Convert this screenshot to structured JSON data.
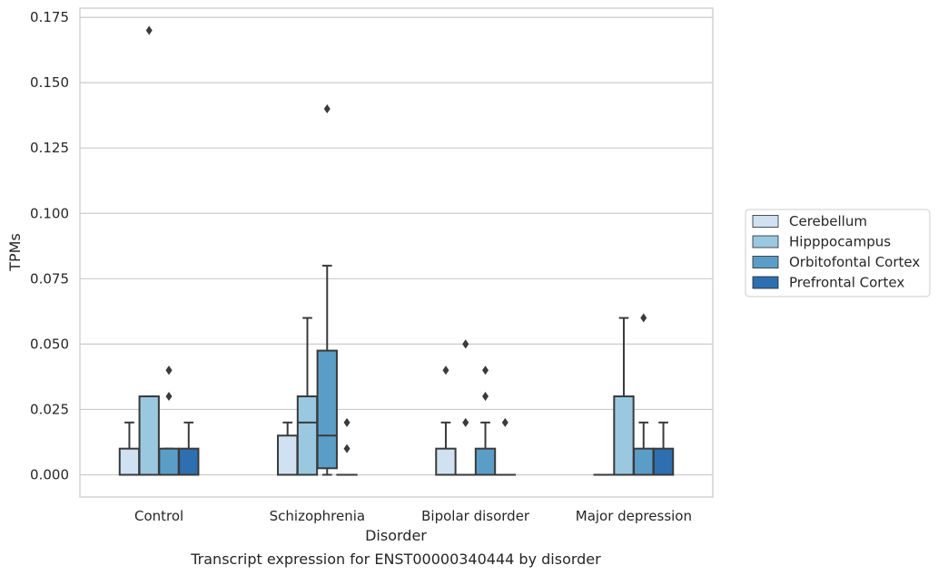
{
  "chart_data": {
    "type": "box",
    "title": "",
    "caption": "Transcript expression for ENST00000340444 by disorder",
    "xlabel": "Disorder",
    "ylabel": "TPMs",
    "ylim": [
      -0.0085,
      0.1785
    ],
    "yticks": [
      "0.000",
      "0.025",
      "0.050",
      "0.075",
      "0.100",
      "0.125",
      "0.150",
      "0.175"
    ],
    "grid": "horizontal",
    "legend_position": "right",
    "categories": [
      "Control",
      "Schizophrenia",
      "Bipolar disorder",
      "Major depression"
    ],
    "series": [
      {
        "name": "Cerebellum",
        "color": "#d0e1f2",
        "boxes": [
          {
            "q1": 0,
            "median": 0,
            "q3": 0.01,
            "whisker_low": 0,
            "whisker_high": 0.02,
            "outliers": []
          },
          {
            "q1": 0,
            "median": 0,
            "q3": 0.015,
            "whisker_low": 0,
            "whisker_high": 0.02,
            "outliers": []
          },
          {
            "q1": 0,
            "median": 0,
            "q3": 0.01,
            "whisker_low": 0,
            "whisker_high": 0.02,
            "outliers": [
              0.04
            ]
          },
          {
            "q1": 0,
            "median": 0,
            "q3": 0,
            "whisker_low": 0,
            "whisker_high": 0,
            "outliers": []
          }
        ]
      },
      {
        "name": "Hipppocampus",
        "color": "#9ac8e0",
        "boxes": [
          {
            "q1": 0,
            "median": 0,
            "q3": 0.03,
            "whisker_low": 0,
            "whisker_high": 0.03,
            "outliers": [
              0.17
            ]
          },
          {
            "q1": 0,
            "median": 0.02,
            "q3": 0.03,
            "whisker_low": 0,
            "whisker_high": 0.06,
            "outliers": []
          },
          {
            "q1": 0,
            "median": 0,
            "q3": 0,
            "whisker_low": 0,
            "whisker_high": 0,
            "outliers": [
              0.02,
              0.05,
              0.05
            ]
          },
          {
            "q1": 0,
            "median": 0,
            "q3": 0.03,
            "whisker_low": 0,
            "whisker_high": 0.06,
            "outliers": []
          }
        ]
      },
      {
        "name": "Orbitofontal Cortex",
        "color": "#5a9ec8",
        "boxes": [
          {
            "q1": 0,
            "median": 0,
            "q3": 0.01,
            "whisker_low": 0,
            "whisker_high": 0.01,
            "outliers": [
              0.03,
              0.04,
              0.04
            ]
          },
          {
            "q1": 0.0025,
            "median": 0.015,
            "q3": 0.0475,
            "whisker_low": 0,
            "whisker_high": 0.08,
            "outliers": [
              0.14
            ]
          },
          {
            "q1": 0,
            "median": 0,
            "q3": 0.01,
            "whisker_low": 0,
            "whisker_high": 0.02,
            "outliers": [
              0.03,
              0.04
            ]
          },
          {
            "q1": 0,
            "median": 0,
            "q3": 0.01,
            "whisker_low": 0,
            "whisker_high": 0.02,
            "outliers": [
              0.06
            ]
          }
        ]
      },
      {
        "name": "Prefrontal Cortex",
        "color": "#2d6fb0",
        "boxes": [
          {
            "q1": 0,
            "median": 0,
            "q3": 0.01,
            "whisker_low": 0,
            "whisker_high": 0.02,
            "outliers": []
          },
          {
            "q1": 0,
            "median": 0,
            "q3": 0,
            "whisker_low": 0,
            "whisker_high": 0,
            "outliers": [
              0.01,
              0.02
            ]
          },
          {
            "q1": 0,
            "median": 0,
            "q3": 0,
            "whisker_low": 0,
            "whisker_high": 0,
            "outliers": [
              0.02
            ]
          },
          {
            "q1": 0,
            "median": 0,
            "q3": 0.01,
            "whisker_low": 0,
            "whisker_high": 0.02,
            "outliers": []
          }
        ]
      }
    ]
  }
}
